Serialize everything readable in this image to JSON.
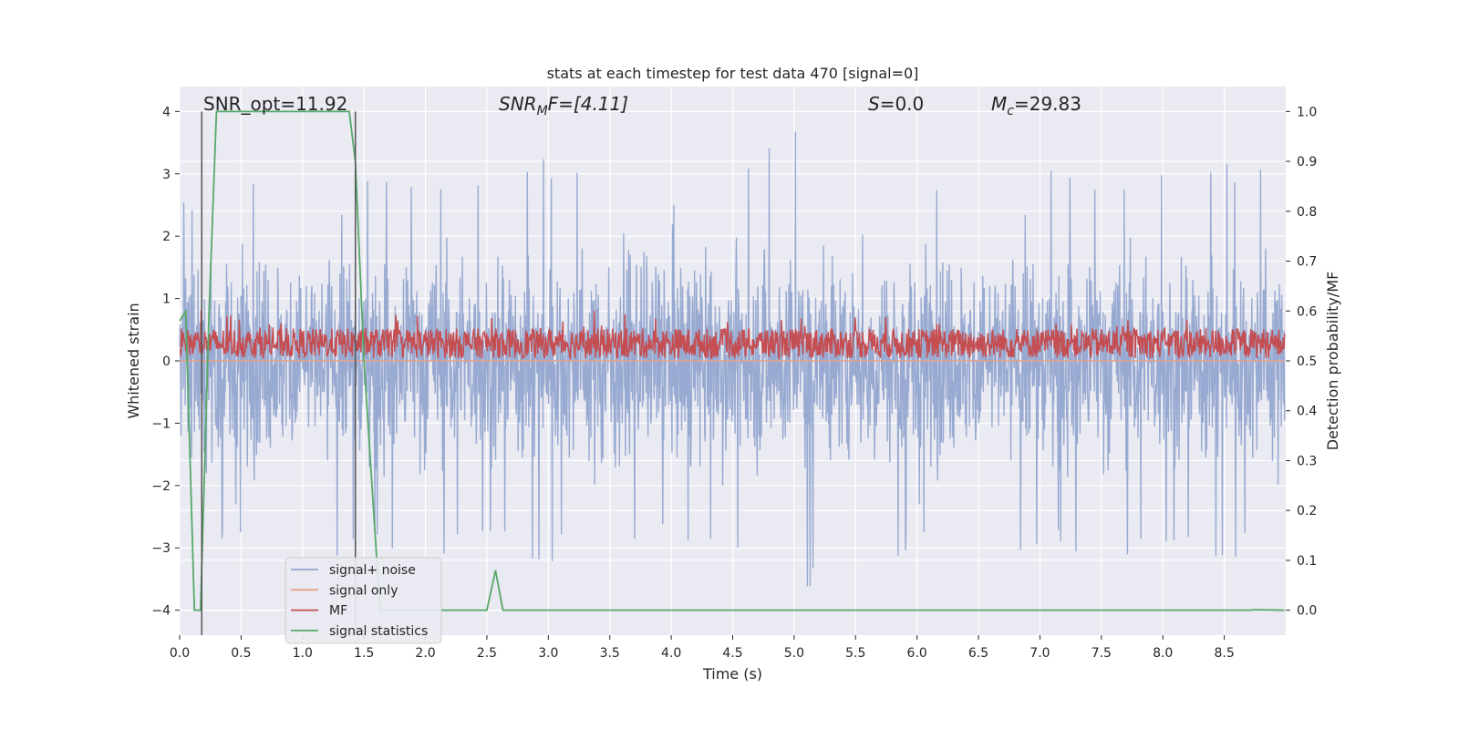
{
  "chart_data": {
    "type": "line",
    "title": "stats at each timestep for test data 470 [signal=0]",
    "xlabel": "Time (s)",
    "ylabel": "Whitened strain",
    "y2label": "Detection probability/MF",
    "xlim": [
      0,
      9
    ],
    "ylim": [
      -4.4,
      4.4
    ],
    "y2lim": [
      -0.05,
      1.05
    ],
    "xticks": [
      "0.0",
      "0.5",
      "1.0",
      "1.5",
      "2.0",
      "2.5",
      "3.0",
      "3.5",
      "4.0",
      "4.5",
      "5.0",
      "5.5",
      "6.0",
      "6.5",
      "7.0",
      "7.5",
      "8.0",
      "8.5"
    ],
    "xtick_values": [
      0,
      0.5,
      1,
      1.5,
      2,
      2.5,
      3,
      3.5,
      4,
      4.5,
      5,
      5.5,
      6,
      6.5,
      7,
      7.5,
      8,
      8.5
    ],
    "yticks": [
      "4",
      "3",
      "2",
      "1",
      "0",
      "−1",
      "−2",
      "−3",
      "−4"
    ],
    "ytick_values": [
      4,
      3,
      2,
      1,
      0,
      -1,
      -2,
      -3,
      -4
    ],
    "y2ticks": [
      "1.0",
      "0.9",
      "0.8",
      "0.7",
      "0.6",
      "0.5",
      "0.4",
      "0.3",
      "0.2",
      "0.1",
      "0.0"
    ],
    "y2tick_values": [
      1,
      0.9,
      0.8,
      0.7,
      0.6,
      0.5,
      0.4,
      0.3,
      0.2,
      0.1,
      0
    ],
    "grid": true,
    "legend_position": "lower-left",
    "colors": {
      "noise": "#8fa3cd",
      "signal_only": "#e8a088",
      "mf": "#c44e52",
      "stat": "#55a868",
      "vline": "#555555",
      "axes_bg": "#eaeaf2",
      "grid": "#ffffff"
    },
    "annotations": {
      "snr_opt": "SNR_opt=11.92",
      "snr_mf_base": "SNR",
      "snr_mf_sub": "M",
      "snr_mf_rest": "F=[4.11]",
      "s_italic": "S",
      "s_rest": "=0.0",
      "mc_base": "M",
      "mc_sub": "c",
      "mc_rest": "=29.83"
    },
    "vertical_lines_x": [
      0.18,
      1.43
    ],
    "series": [
      {
        "name": "signal+ noise",
        "axis": "left",
        "description": "whitened strain noise, symmetric envelope about 0",
        "envelope_upper_x": [
          0,
          0.5,
          1,
          1.5,
          2,
          2.5,
          3,
          3.5,
          4,
          4.5,
          5,
          5.5,
          6,
          6.5,
          7,
          7.5,
          8,
          8.5,
          8.99
        ],
        "envelope_upper_y": [
          2.5,
          3.2,
          3.6,
          3.0,
          3.2,
          3.1,
          3.3,
          3.1,
          2.9,
          3.4,
          3.9,
          3.1,
          3.2,
          3.1,
          3.2,
          3.1,
          3.3,
          3.2,
          3.3
        ]
      },
      {
        "name": "signal only",
        "axis": "left",
        "x": [
          0,
          8.99
        ],
        "y": [
          0,
          0
        ]
      },
      {
        "name": "MF",
        "axis": "right",
        "description": "matched-filter output, fluctuating between 0.50 and 0.61",
        "baseline": 0.5,
        "range": [
          0.5,
          0.61
        ]
      },
      {
        "name": "signal statistics",
        "axis": "right",
        "x": [
          0,
          0.05,
          0.12,
          0.17,
          0.24,
          0.3,
          1.38,
          1.43,
          1.5,
          1.63,
          2.0,
          2.5,
          2.57,
          2.63,
          3.0,
          8.7,
          8.75,
          8.99
        ],
        "y": [
          0.58,
          0.6,
          0.0,
          0.0,
          0.6,
          1.0,
          1.0,
          0.9,
          0.5,
          0.0,
          0.0,
          0.0,
          0.08,
          0.0,
          0.0,
          0.0,
          0.001,
          0.0
        ]
      }
    ],
    "legend": [
      "signal+ noise",
      "signal only",
      "MF",
      "signal statistics"
    ]
  }
}
